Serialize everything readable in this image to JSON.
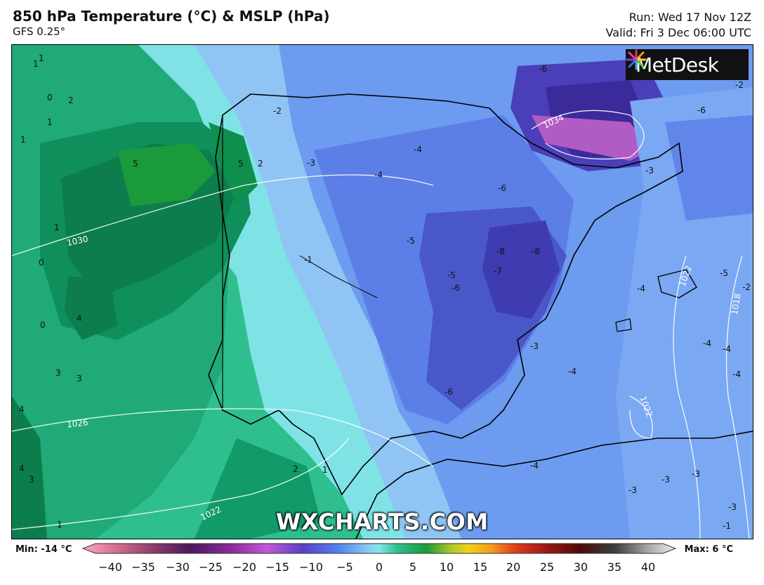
{
  "header": {
    "title": "850 hPa Temperature (°C) & MSLP (hPa)",
    "model": "GFS 0.25°",
    "run": "Run: Wed 17 Nov 12Z",
    "valid": "Valid: Fri 3 Dec 06:00 UTC"
  },
  "logo": {
    "text": "MetDesk",
    "icon": "metdesk-burst-icon"
  },
  "watermark": "WXCHARTS.COM",
  "map": {
    "temperature_labels": [
      "1",
      "2",
      "0",
      "1",
      "1",
      "5",
      "5",
      "-2",
      "-3",
      "-4",
      "-4",
      "-5",
      "-6",
      "-6",
      "-8",
      "-8",
      "-7",
      "-5",
      "-6",
      "-3",
      "-4",
      "-6",
      "-4",
      "-3",
      "-2",
      "-6",
      "-5",
      "-4",
      "1",
      "4",
      "3",
      "3",
      "4",
      "3",
      "4",
      "1",
      "2",
      "1",
      "0",
      "0",
      "-1",
      "-3",
      "-4",
      "-3",
      "-3",
      "-4",
      "-4",
      "-2",
      "-3",
      "-1",
      "2",
      "1"
    ],
    "isobar_labels": [
      "1030",
      "1026",
      "1022",
      "1034",
      "1022",
      "1022",
      "1018"
    ]
  },
  "colorbar": {
    "min_label": "Min: -14 °C",
    "max_label": "Max: 6 °C",
    "ticks": [
      "−40",
      "−35",
      "−30",
      "−25",
      "−20",
      "−15",
      "−10",
      "−5",
      "0",
      "5",
      "10",
      "15",
      "20",
      "25",
      "30",
      "35",
      "40"
    ]
  }
}
